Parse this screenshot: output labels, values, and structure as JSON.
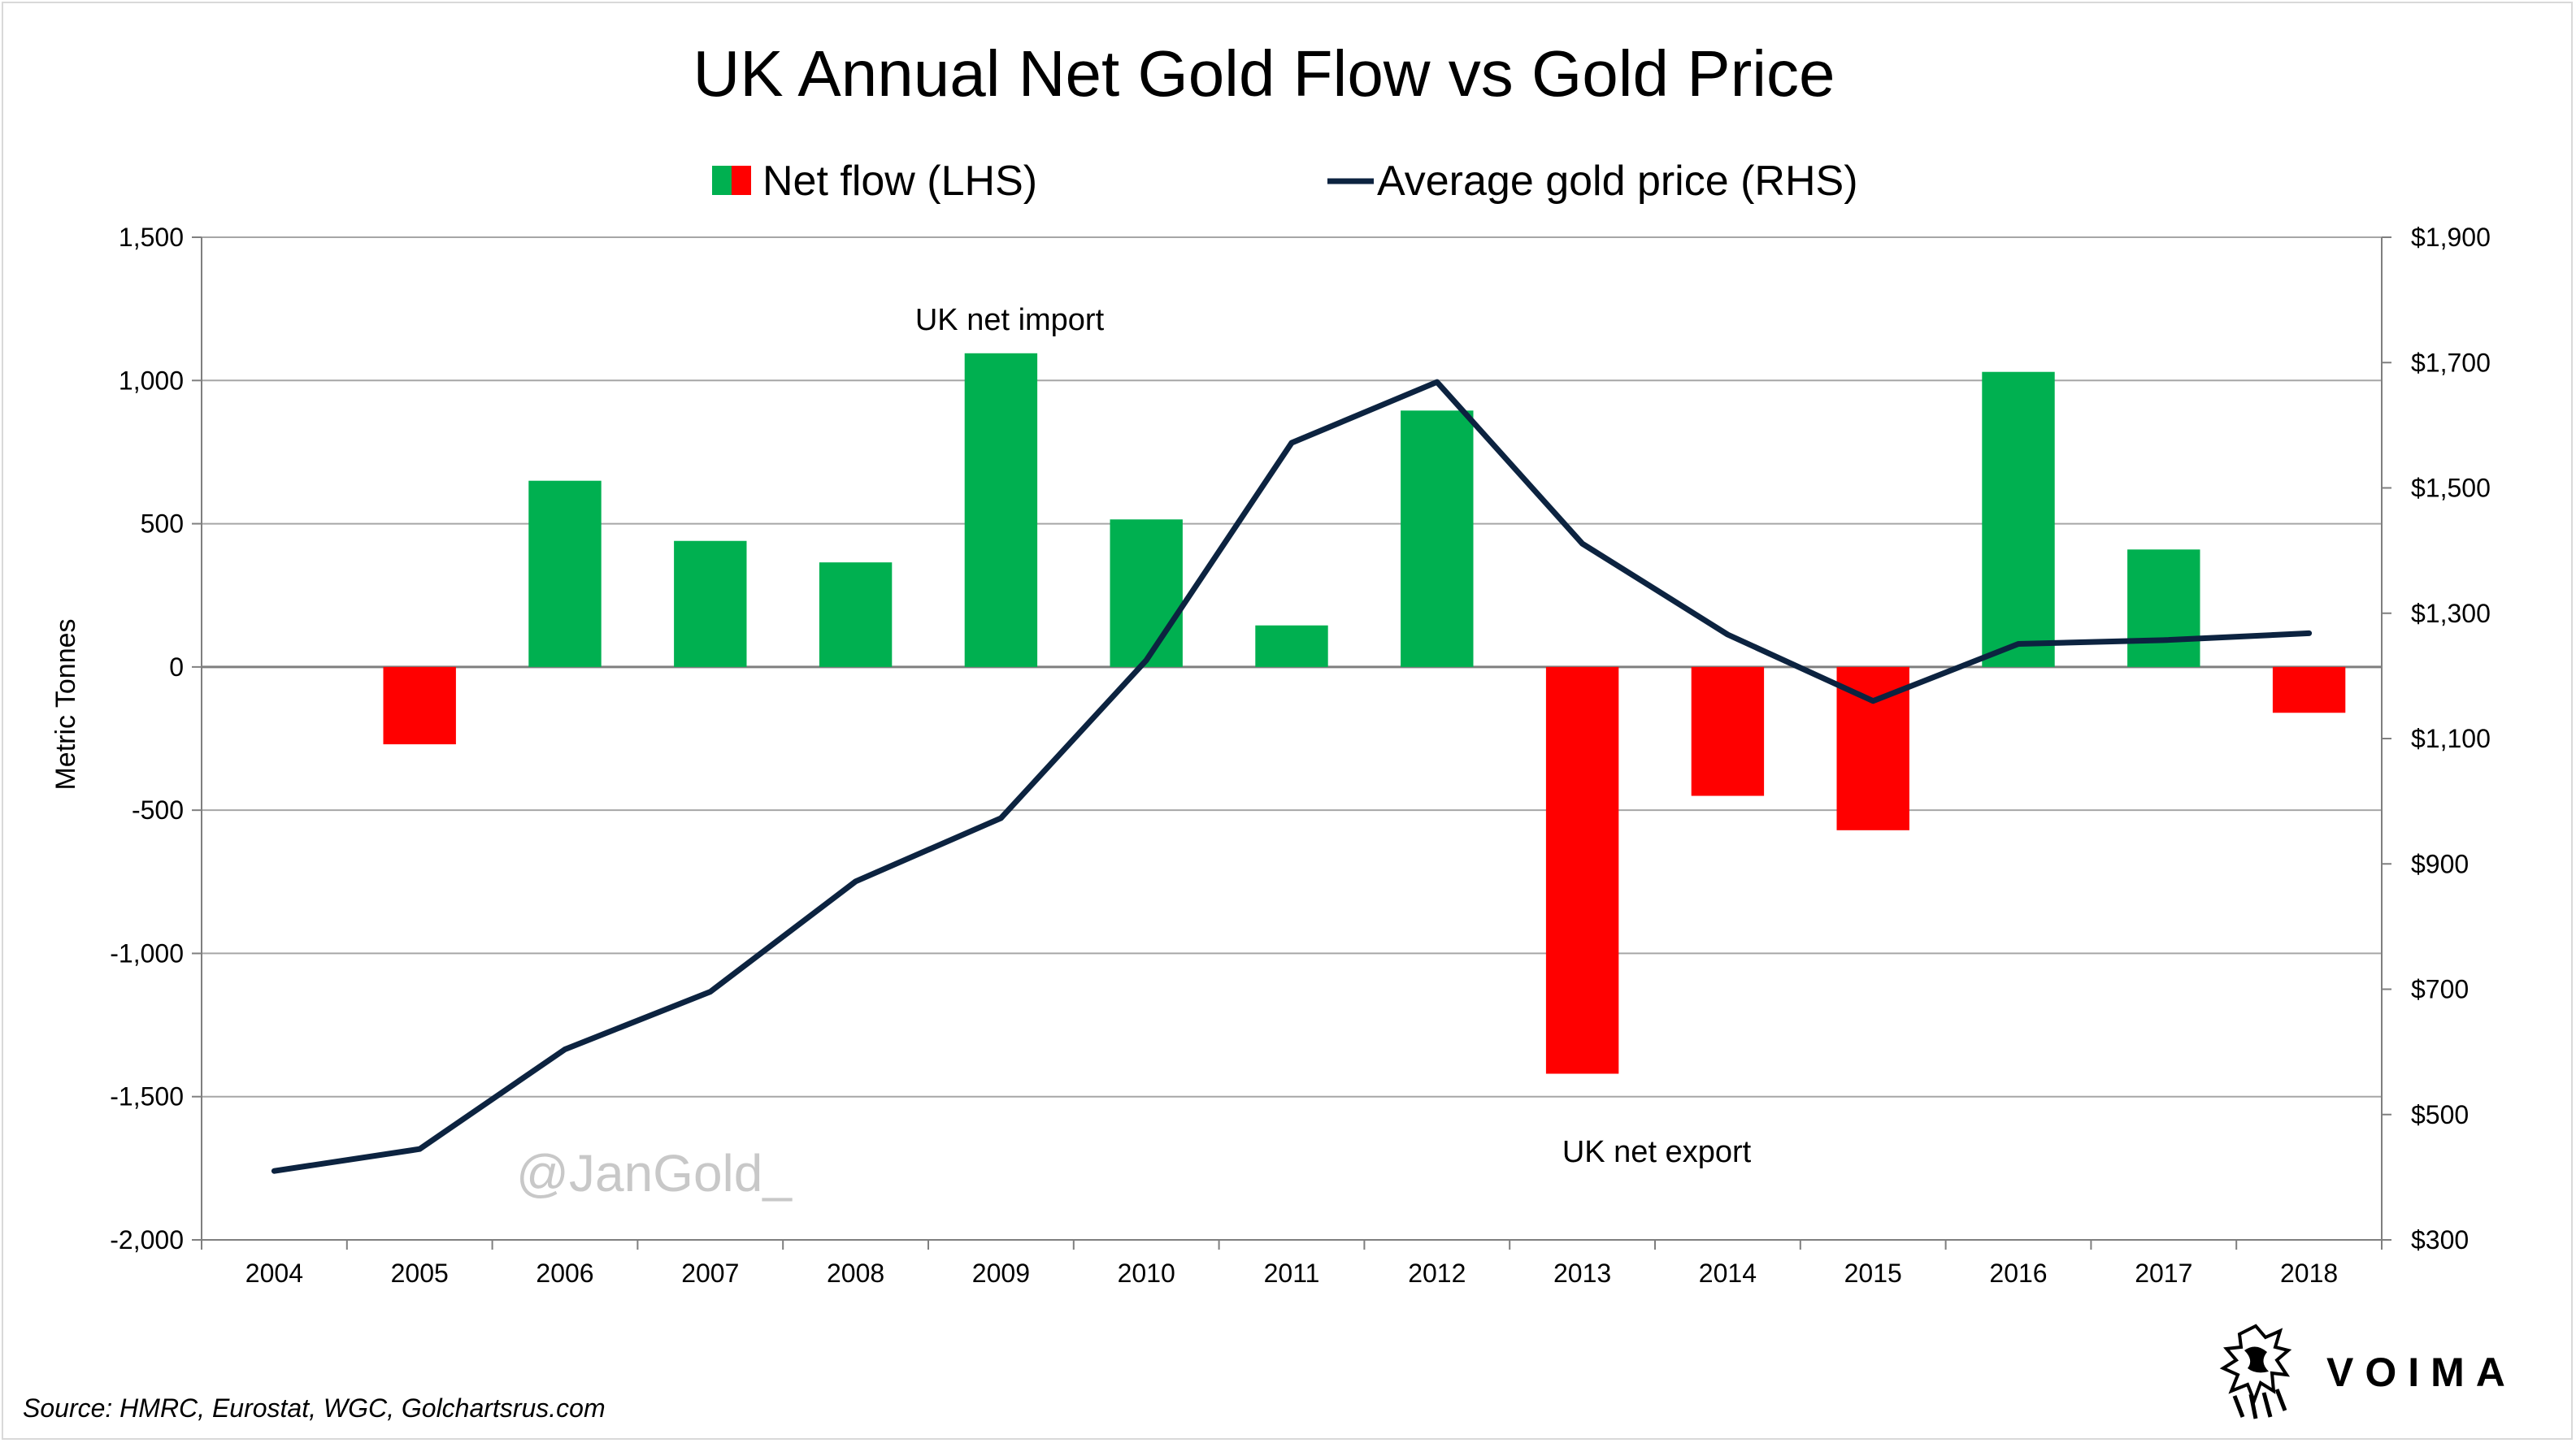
{
  "chart_data": {
    "type": "bar",
    "title": "UK Annual Net Gold Flow vs Gold Price",
    "categories": [
      "2004",
      "2005",
      "2006",
      "2007",
      "2008",
      "2009",
      "2010",
      "2011",
      "2012",
      "2013",
      "2014",
      "2015",
      "2016",
      "2017",
      "2018"
    ],
    "series": [
      {
        "name": "Net flow (LHS)",
        "type": "bar",
        "axis": "left",
        "values": [
          0,
          -270,
          650,
          440,
          365,
          1095,
          515,
          145,
          895,
          -1420,
          -450,
          -570,
          1030,
          410,
          -160
        ],
        "positive_color": "#00b050",
        "negative_color": "#ff0000"
      },
      {
        "name": "Average gold price (RHS)",
        "type": "line",
        "axis": "right",
        "values": [
          410,
          445,
          604,
          696,
          872,
          973,
          1225,
          1572,
          1669,
          1411,
          1266,
          1160,
          1251,
          1257,
          1268
        ],
        "color": "#0c2340"
      }
    ],
    "left_axis": {
      "label": "Metric Tonnes",
      "min": -2000,
      "max": 1500,
      "ticks": [
        1500,
        1000,
        500,
        0,
        -500,
        -1000,
        -1500,
        -2000
      ],
      "tick_labels": [
        "1,500",
        "1,000",
        "500",
        "0",
        "-500",
        "-1,000",
        "-1,500",
        "-2,000"
      ]
    },
    "right_axis": {
      "label": "",
      "min": 300,
      "max": 1900,
      "ticks": [
        1900,
        1700,
        1500,
        1300,
        1100,
        900,
        700,
        500,
        300
      ],
      "tick_labels": [
        "$1,900",
        "$1,700",
        "$1,500",
        "$1,300",
        "$1,100",
        "$900",
        "$700",
        "$500",
        "$300"
      ]
    },
    "grid": true,
    "legend_position": "top",
    "annotations": [
      {
        "text": "UK net import",
        "near": "2009"
      },
      {
        "text": "UK net export",
        "near": "2013"
      }
    ]
  },
  "watermark": "@JanGold_",
  "source": "Source: HMRC, Eurostat, WGC, Golchartsrus.com",
  "brand": {
    "name": "VOIMA",
    "logo_icon": "griffin-logo-icon"
  }
}
